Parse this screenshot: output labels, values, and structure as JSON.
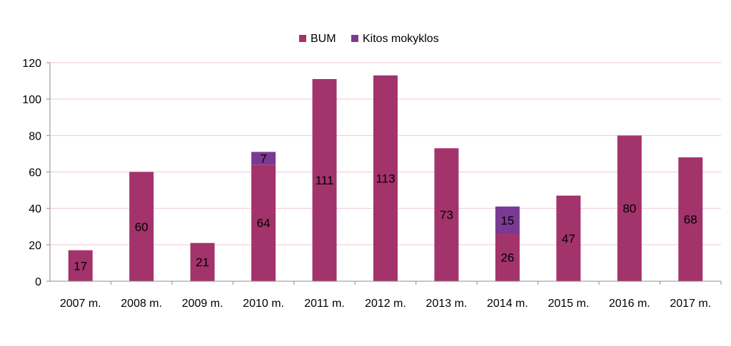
{
  "chart_data": {
    "type": "bar",
    "stacked": true,
    "categories": [
      "2007 m.",
      "2008 m.",
      "2009 m.",
      "2010 m.",
      "2011 m.",
      "2012 m.",
      "2013 m.",
      "2014 m.",
      "2015 m.",
      "2016 m.",
      "2017 m."
    ],
    "series": [
      {
        "name": "BUM",
        "color": "#A3336B",
        "values": [
          17,
          60,
          21,
          64,
          111,
          113,
          73,
          26,
          47,
          80,
          68
        ]
      },
      {
        "name": "Kitos mokyklos",
        "color": "#7A3A93",
        "values": [
          0,
          0,
          0,
          7,
          0,
          0,
          0,
          15,
          0,
          0,
          0
        ]
      }
    ],
    "ylim": [
      0,
      120
    ],
    "yticks": [
      "0",
      "20",
      "40",
      "60",
      "80",
      "100",
      "120"
    ],
    "grid": true,
    "legend": "top-center"
  }
}
